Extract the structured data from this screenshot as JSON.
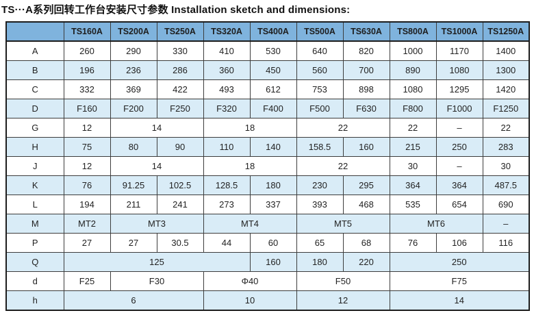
{
  "title": "TS···A系列回转工作台安装尺寸参数 Installation sketch and dimensions:",
  "colors": {
    "header_bg": "#7fb3dd",
    "stripe_bg": "#d9ecf7",
    "border": "#3c3c3c",
    "outer_border": "#1c1c1c"
  },
  "table": {
    "corner_label": "",
    "columns": [
      "TS160A",
      "TS200A",
      "TS250A",
      "TS320A",
      "TS400A",
      "TS500A",
      "TS630A",
      "TS800A",
      "TS1000A",
      "TS1250A"
    ],
    "rows": [
      {
        "label": "A",
        "cells": [
          {
            "v": "260"
          },
          {
            "v": "290"
          },
          {
            "v": "330"
          },
          {
            "v": "410"
          },
          {
            "v": "530"
          },
          {
            "v": "640"
          },
          {
            "v": "820"
          },
          {
            "v": "1000"
          },
          {
            "v": "1170"
          },
          {
            "v": "1400"
          }
        ]
      },
      {
        "label": "B",
        "cells": [
          {
            "v": "196"
          },
          {
            "v": "236"
          },
          {
            "v": "286"
          },
          {
            "v": "360"
          },
          {
            "v": "450"
          },
          {
            "v": "560"
          },
          {
            "v": "700"
          },
          {
            "v": "890"
          },
          {
            "v": "1080"
          },
          {
            "v": "1300"
          }
        ]
      },
      {
        "label": "C",
        "cells": [
          {
            "v": "332"
          },
          {
            "v": "369"
          },
          {
            "v": "422"
          },
          {
            "v": "493"
          },
          {
            "v": "612"
          },
          {
            "v": "753"
          },
          {
            "v": "898"
          },
          {
            "v": "1080"
          },
          {
            "v": "1295"
          },
          {
            "v": "1420"
          }
        ]
      },
      {
        "label": "D",
        "cells": [
          {
            "v": "F160"
          },
          {
            "v": "F200"
          },
          {
            "v": "F250"
          },
          {
            "v": "F320"
          },
          {
            "v": "F400"
          },
          {
            "v": "F500"
          },
          {
            "v": "F630"
          },
          {
            "v": "F800"
          },
          {
            "v": "F1000"
          },
          {
            "v": "F1250"
          }
        ]
      },
      {
        "label": "G",
        "cells": [
          {
            "v": "12"
          },
          {
            "v": "14",
            "span": 2
          },
          {
            "v": "18",
            "span": 2
          },
          {
            "v": "22",
            "span": 2
          },
          {
            "v": "22"
          },
          {
            "v": "–"
          },
          {
            "v": "22"
          }
        ]
      },
      {
        "label": "H",
        "cells": [
          {
            "v": "75"
          },
          {
            "v": "80"
          },
          {
            "v": "90"
          },
          {
            "v": "110"
          },
          {
            "v": "140"
          },
          {
            "v": "158.5"
          },
          {
            "v": "160"
          },
          {
            "v": "215"
          },
          {
            "v": "250"
          },
          {
            "v": "283"
          }
        ]
      },
      {
        "label": "J",
        "cells": [
          {
            "v": "12"
          },
          {
            "v": "14",
            "span": 2
          },
          {
            "v": "18",
            "span": 2
          },
          {
            "v": "22",
            "span": 2
          },
          {
            "v": "30"
          },
          {
            "v": "–"
          },
          {
            "v": "30"
          }
        ]
      },
      {
        "label": "K",
        "cells": [
          {
            "v": "76"
          },
          {
            "v": "91.25"
          },
          {
            "v": "102.5"
          },
          {
            "v": "128.5"
          },
          {
            "v": "180"
          },
          {
            "v": "230"
          },
          {
            "v": "295"
          },
          {
            "v": "364"
          },
          {
            "v": "364"
          },
          {
            "v": "487.5"
          }
        ]
      },
      {
        "label": "L",
        "cells": [
          {
            "v": "194"
          },
          {
            "v": "211"
          },
          {
            "v": "241"
          },
          {
            "v": "273"
          },
          {
            "v": "337"
          },
          {
            "v": "393"
          },
          {
            "v": "468"
          },
          {
            "v": "535"
          },
          {
            "v": "654"
          },
          {
            "v": "690"
          }
        ]
      },
      {
        "label": "M",
        "cells": [
          {
            "v": "MT2"
          },
          {
            "v": "MT3",
            "span": 2
          },
          {
            "v": "MT4",
            "span": 2
          },
          {
            "v": "MT5",
            "span": 2
          },
          {
            "v": "MT6",
            "span": 2
          },
          {
            "v": "–"
          }
        ]
      },
      {
        "label": "P",
        "cells": [
          {
            "v": "27"
          },
          {
            "v": "27"
          },
          {
            "v": "30.5"
          },
          {
            "v": "44"
          },
          {
            "v": "60"
          },
          {
            "v": "65"
          },
          {
            "v": "68"
          },
          {
            "v": "76"
          },
          {
            "v": "106"
          },
          {
            "v": "116"
          }
        ]
      },
      {
        "label": "Q",
        "cells": [
          {
            "v": "125",
            "span": 4
          },
          {
            "v": "160"
          },
          {
            "v": "180"
          },
          {
            "v": "220"
          },
          {
            "v": "250",
            "span": 3
          }
        ]
      },
      {
        "label": "d",
        "cells": [
          {
            "v": "F25"
          },
          {
            "v": "F30",
            "span": 2
          },
          {
            "v": "Φ40",
            "span": 2
          },
          {
            "v": "F50",
            "span": 2
          },
          {
            "v": "F75",
            "span": 3
          }
        ]
      },
      {
        "label": "h",
        "cells": [
          {
            "v": "6",
            "span": 3
          },
          {
            "v": "10",
            "span": 2
          },
          {
            "v": "12",
            "span": 2
          },
          {
            "v": "14",
            "span": 3
          }
        ]
      }
    ]
  }
}
